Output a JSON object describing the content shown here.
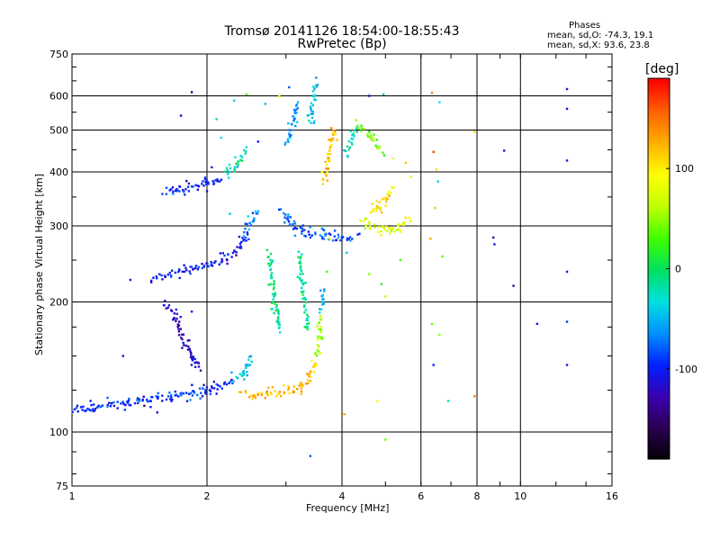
{
  "chart_data": {
    "type": "scatter",
    "title": "Tromsø 20141126 18:54:00-18:55:43",
    "subtitle": "RwPretec (Bp)",
    "xlabel": "Frequency [MHz]",
    "ylabel": "Stationary phase Virtual Height [km]",
    "xscale": "log",
    "yscale": "log",
    "xlim": [
      1,
      16
    ],
    "ylim": [
      75,
      750
    ],
    "xticks": [
      1,
      2,
      4,
      6,
      8,
      10,
      16
    ],
    "yticks": [
      75,
      100,
      200,
      300,
      400,
      500,
      600,
      750
    ],
    "xgrid": [
      2,
      4,
      6,
      8,
      10
    ],
    "ygrid": [
      100,
      200,
      300,
      400,
      500,
      600
    ],
    "grid": true,
    "stats": {
      "heading": "Phases",
      "line_o": "mean, sd,O: -74.3, 19.1",
      "line_x": "mean, sd,X:  93.6, 23.8"
    },
    "colorbar": {
      "label": "[deg]",
      "ticks": [
        100,
        0,
        -100
      ],
      "range": [
        -190,
        190
      ],
      "colors": [
        "#000000",
        "#2a0050",
        "#3a00b0",
        "#0020ff",
        "#0090ff",
        "#00e0e0",
        "#00e060",
        "#40ff00",
        "#c0ff00",
        "#ffff00",
        "#ffb000",
        "#ff6000",
        "#ff0000"
      ]
    },
    "series": [
      {
        "traces": [
          {
            "phase": -90,
            "points": [
              [
                1.0,
                112
              ],
              [
                1.05,
                113
              ],
              [
                1.12,
                114
              ],
              [
                1.22,
                115
              ],
              [
                1.32,
                116
              ],
              [
                1.42,
                118
              ],
              [
                1.55,
                119
              ],
              [
                1.7,
                121
              ],
              [
                1.85,
                123
              ],
              [
                2.0,
                125
              ],
              [
                2.1,
                127
              ],
              [
                2.2,
                129
              ],
              [
                2.3,
                133
              ]
            ]
          },
          {
            "phase": -40,
            "points": [
              [
                2.3,
                133
              ],
              [
                2.4,
                137
              ],
              [
                2.45,
                140
              ],
              [
                2.5,
                148
              ]
            ]
          },
          {
            "phase": 120,
            "points": [
              [
                2.4,
                123
              ],
              [
                2.55,
                122
              ],
              [
                2.7,
                122
              ],
              [
                2.9,
                123
              ],
              [
                3.1,
                125
              ],
              [
                3.25,
                128
              ],
              [
                3.4,
                134
              ],
              [
                3.5,
                145
              ]
            ]
          },
          {
            "phase": 60,
            "points": [
              [
                3.5,
                150
              ],
              [
                3.55,
                165
              ],
              [
                3.6,
                185
              ]
            ]
          },
          {
            "phase": -50,
            "points": [
              [
                3.6,
                190
              ],
              [
                3.62,
                215
              ]
            ]
          },
          {
            "phase": -100,
            "points": [
              [
                1.5,
                225
              ],
              [
                1.6,
                230
              ],
              [
                1.75,
                235
              ],
              [
                1.9,
                240
              ],
              [
                2.05,
                245
              ],
              [
                2.2,
                252
              ],
              [
                2.3,
                262
              ],
              [
                2.4,
                276
              ],
              [
                2.45,
                290
              ]
            ]
          },
          {
            "phase": -60,
            "points": [
              [
                2.45,
                295
              ],
              [
                2.55,
                310
              ],
              [
                2.6,
                320
              ]
            ]
          },
          {
            "phase": -100,
            "points": [
              [
                1.6,
                360
              ],
              [
                1.75,
                365
              ],
              [
                1.9,
                370
              ],
              [
                2.05,
                377
              ],
              [
                2.15,
                385
              ]
            ]
          },
          {
            "phase": -20,
            "points": [
              [
                2.2,
                395
              ],
              [
                2.35,
                420
              ],
              [
                2.45,
                450
              ]
            ]
          },
          {
            "phase": -80,
            "points": [
              [
                2.95,
                325
              ],
              [
                3.05,
                305
              ],
              [
                3.2,
                293
              ],
              [
                3.4,
                287
              ],
              [
                3.7,
                283
              ],
              [
                4.0,
                281
              ],
              [
                4.3,
                282
              ]
            ]
          },
          {
            "phase": -60,
            "points": [
              [
                3.0,
                460
              ],
              [
                3.1,
                520
              ],
              [
                3.2,
                570
              ]
            ]
          },
          {
            "phase": -40,
            "points": [
              [
                3.4,
                520
              ],
              [
                3.45,
                590
              ],
              [
                3.5,
                640
              ]
            ]
          },
          {
            "phase": 120,
            "points": [
              [
                3.65,
                380
              ],
              [
                3.7,
                410
              ],
              [
                3.75,
                440
              ],
              [
                3.8,
                470
              ],
              [
                3.85,
                500
              ]
            ]
          },
          {
            "phase": 80,
            "points": [
              [
                4.4,
                310
              ],
              [
                4.6,
                300
              ],
              [
                4.8,
                295
              ],
              [
                5.0,
                294
              ],
              [
                5.2,
                295
              ],
              [
                5.4,
                300
              ],
              [
                5.6,
                310
              ]
            ]
          },
          {
            "phase": 100,
            "points": [
              [
                4.6,
                320
              ],
              [
                4.8,
                330
              ],
              [
                5.0,
                345
              ],
              [
                5.2,
                365
              ]
            ]
          },
          {
            "phase": 40,
            "points": [
              [
                4.3,
                520
              ],
              [
                4.6,
                480
              ],
              [
                4.9,
                450
              ]
            ]
          },
          {
            "phase": -30,
            "points": [
              [
                4.1,
                440
              ],
              [
                4.2,
                470
              ],
              [
                4.3,
                500
              ]
            ]
          },
          {
            "phase": -10,
            "points": [
              [
                2.75,
                260
              ],
              [
                2.8,
                220
              ],
              [
                2.85,
                190
              ],
              [
                2.9,
                170
              ]
            ]
          },
          {
            "phase": -10,
            "points": [
              [
                3.2,
                260
              ],
              [
                3.25,
                230
              ],
              [
                3.3,
                200
              ],
              [
                3.35,
                175
              ]
            ]
          },
          {
            "phase": -120,
            "points": [
              [
                1.6,
                200
              ],
              [
                1.7,
                185
              ],
              [
                1.75,
                170
              ],
              [
                1.8,
                160
              ],
              [
                1.85,
                148
              ],
              [
                1.95,
                140
              ]
            ]
          }
        ]
      },
      {
        "points": [
          [
            1.85,
            612,
            -140
          ],
          [
            1.75,
            540,
            -120
          ],
          [
            1.35,
            225,
            -100
          ],
          [
            1.3,
            150,
            -110
          ],
          [
            1.45,
            115,
            -150
          ],
          [
            2.3,
            585,
            -40
          ],
          [
            2.45,
            605,
            40
          ],
          [
            2.9,
            598,
            100
          ],
          [
            3.05,
            628,
            -80
          ],
          [
            4.6,
            600,
            -130
          ],
          [
            4.95,
            605,
            -40
          ],
          [
            6.35,
            610,
            150
          ],
          [
            6.6,
            580,
            -30
          ],
          [
            6.4,
            445,
            170
          ],
          [
            6.5,
            405,
            110
          ],
          [
            6.55,
            380,
            -40
          ],
          [
            6.45,
            330,
            50
          ],
          [
            6.3,
            280,
            130
          ],
          [
            6.7,
            255,
            40
          ],
          [
            7.9,
            495,
            110
          ],
          [
            9.2,
            448,
            -110
          ],
          [
            8.7,
            282,
            -130
          ],
          [
            8.75,
            272,
            -100
          ],
          [
            9.65,
            218,
            -130
          ],
          [
            10.9,
            178,
            -110
          ],
          [
            12.7,
            622,
            -110
          ],
          [
            12.7,
            560,
            -110
          ],
          [
            12.7,
            425,
            -100
          ],
          [
            12.7,
            235,
            -110
          ],
          [
            12.7,
            180,
            -90
          ],
          [
            12.7,
            143,
            -100
          ],
          [
            6.4,
            143,
            -100
          ],
          [
            6.9,
            118,
            -20
          ],
          [
            5.0,
            96,
            40
          ],
          [
            3.4,
            88,
            -80
          ],
          [
            7.9,
            121,
            150
          ],
          [
            4.8,
            118,
            100
          ],
          [
            4.6,
            232,
            50
          ],
          [
            5.0,
            206,
            60
          ],
          [
            6.35,
            178,
            40
          ],
          [
            6.6,
            168,
            50
          ],
          [
            3.7,
            235,
            30
          ],
          [
            4.05,
            110,
            130
          ],
          [
            1.55,
            111,
            -120
          ],
          [
            1.1,
            118,
            -100
          ],
          [
            1.2,
            120,
            -80
          ],
          [
            2.05,
            410,
            -110
          ],
          [
            1.85,
            190,
            -100
          ],
          [
            1.95,
            245,
            -120
          ],
          [
            2.25,
            320,
            -40
          ],
          [
            2.7,
            575,
            -50
          ],
          [
            3.75,
            280,
            80
          ],
          [
            4.1,
            260,
            -40
          ],
          [
            5.2,
            430,
            90
          ],
          [
            5.55,
            420,
            120
          ],
          [
            5.7,
            390,
            70
          ],
          [
            5.4,
            250,
            30
          ],
          [
            4.9,
            220,
            20
          ],
          [
            2.6,
            470,
            -100
          ],
          [
            2.15,
            480,
            -30
          ],
          [
            2.1,
            530,
            -20
          ]
        ]
      }
    ]
  }
}
